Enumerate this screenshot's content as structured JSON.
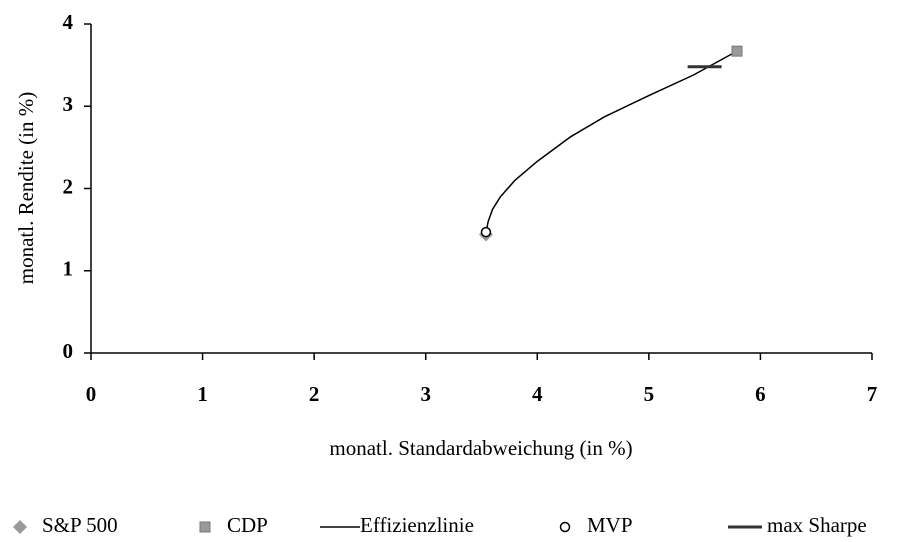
{
  "chart_data": {
    "type": "scatter",
    "xlabel": "monatl. Standardabweichung (in %)",
    "ylabel": "monatl. Rendite (in %)",
    "xlim": [
      0,
      7
    ],
    "xticks": [
      0,
      1,
      2,
      3,
      4,
      5,
      6,
      7
    ],
    "ylim": [
      0,
      4
    ],
    "yticks": [
      0,
      1,
      2,
      3,
      4
    ],
    "grid": false,
    "legend": "bottom",
    "series": [
      {
        "name": "S&P 500",
        "color": "#999999",
        "marker": "diamond",
        "x": [
          3.54
        ],
        "values": [
          1.44
        ]
      },
      {
        "name": "CDP",
        "color": "#999999",
        "marker": "square",
        "x": [
          5.79
        ],
        "values": [
          3.67
        ]
      },
      {
        "name": "Effizienzlinie",
        "color": "#000000",
        "marker": "line",
        "x": [
          3.54,
          3.56,
          3.6,
          3.67,
          3.8,
          4.0,
          4.3,
          4.6,
          5.0,
          5.4,
          5.79
        ],
        "values": [
          1.47,
          1.6,
          1.75,
          1.9,
          2.1,
          2.33,
          2.63,
          2.87,
          3.13,
          3.38,
          3.67
        ]
      },
      {
        "name": "MVP",
        "color": "#000000",
        "marker": "circle",
        "x": [
          3.54
        ],
        "values": [
          1.47
        ]
      },
      {
        "name": "max Sharpe",
        "color": "#333333",
        "marker": "dash",
        "x": [
          5.5
        ],
        "values": [
          3.48
        ]
      }
    ]
  }
}
